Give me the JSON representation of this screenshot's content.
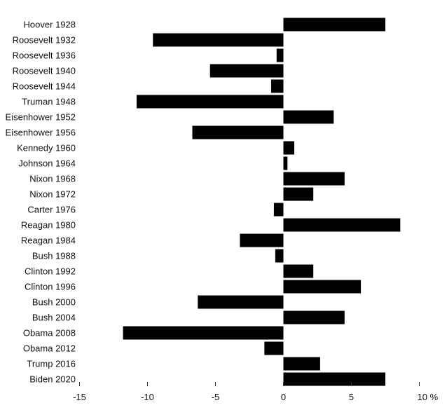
{
  "chart_data": {
    "type": "bar",
    "orientation": "horizontal",
    "categories": [
      "Hoover 1928",
      "Roosevelt 1932",
      "Roosevelt 1936",
      "Roosevelt 1940",
      "Roosevelt 1944",
      "Truman 1948",
      "Eisenhower 1952",
      "Eisenhower 1956",
      "Kennedy 1960",
      "Johnson 1964",
      "Nixon 1968",
      "Nixon 1972",
      "Carter 1976",
      "Reagan 1980",
      "Reagan 1984",
      "Bush 1988",
      "Clinton 1992",
      "Clinton 1996",
      "Bush 2000",
      "Bush 2004",
      "Obama 2008",
      "Obama 2012",
      "Trump 2016",
      "Biden 2020"
    ],
    "values": [
      7.5,
      -9.6,
      -0.5,
      -5.4,
      -0.9,
      -10.8,
      3.7,
      -6.7,
      0.8,
      0.3,
      4.5,
      2.2,
      -0.7,
      8.6,
      -3.2,
      -0.6,
      2.2,
      5.7,
      -6.3,
      4.5,
      -11.8,
      -1.4,
      2.7,
      7.5
    ],
    "xlim": [
      -15,
      10
    ],
    "xticks": [
      -15,
      -10,
      -5,
      0,
      5,
      10
    ],
    "xtick_labels": [
      "-15",
      "-10",
      "-5",
      "0",
      "5",
      "10 %"
    ],
    "bar_color": "#000000",
    "title": "",
    "xlabel": "",
    "ylabel": ""
  }
}
